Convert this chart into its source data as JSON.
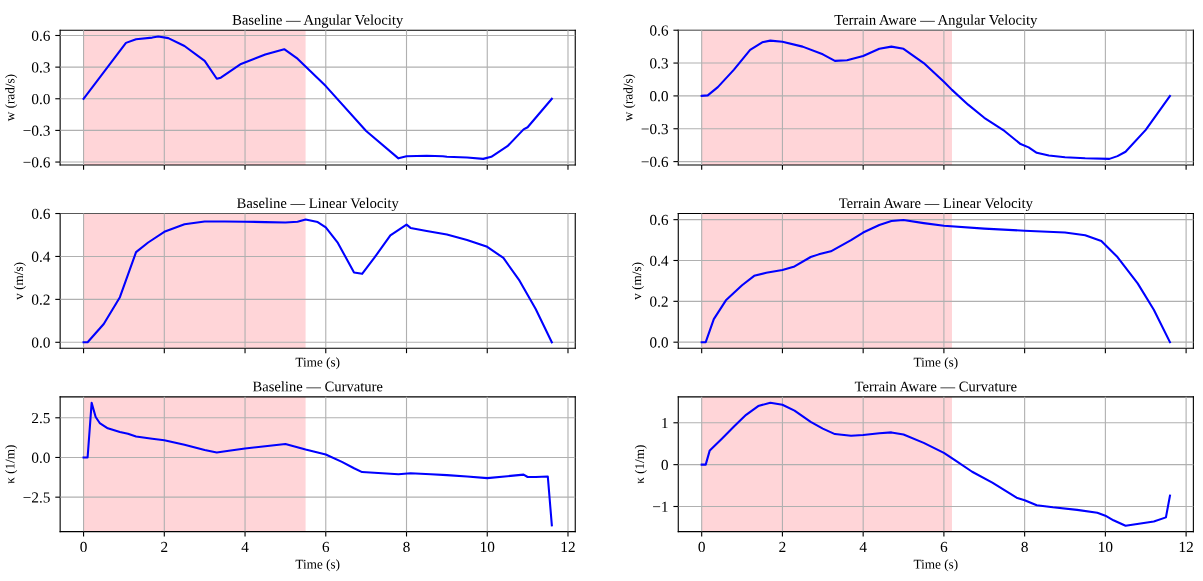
{
  "chart_data": [
    {
      "type": "line",
      "title": "Baseline — Angular Velocity",
      "ylabel": "w (rad/s)",
      "grid": true,
      "tick_labels": "y",
      "xlim": [
        -0.58,
        12.18
      ],
      "xticks": [
        0,
        2,
        4,
        6,
        8,
        10,
        12
      ],
      "ylim": [
        -0.628,
        0.65
      ],
      "yticks": [
        {
          "value": -0.6,
          "label": "−0.6"
        },
        {
          "value": -0.3,
          "label": "−0.3"
        },
        {
          "value": 0,
          "label": "0.0"
        },
        0.3,
        0.6
      ],
      "bands": [
        {
          "axis": "x",
          "from": 0,
          "to": 5.5,
          "color": "#ffd5d8"
        }
      ],
      "series": [
        {
          "color": "#0000ff",
          "x": [
            0,
            1.05,
            1.3,
            1.7,
            1.85,
            2.1,
            2.5,
            3.0,
            3.3,
            3.4,
            3.9,
            4.5,
            4.97,
            5.3,
            6.0,
            7.0,
            7.8,
            8.0,
            8.5,
            8.9,
            9.0,
            9.5,
            9.9,
            10.1,
            10.5,
            10.9,
            11.0,
            11.6
          ],
          "values": [
            0,
            0.53,
            0.565,
            0.58,
            0.59,
            0.575,
            0.5,
            0.36,
            0.19,
            0.2,
            0.33,
            0.42,
            0.47,
            0.38,
            0.12,
            -0.305,
            -0.565,
            -0.545,
            -0.54,
            -0.545,
            -0.55,
            -0.557,
            -0.57,
            -0.55,
            -0.45,
            -0.29,
            -0.27,
            0
          ]
        }
      ]
    },
    {
      "type": "line",
      "title": "Terrain Aware — Angular Velocity",
      "ylabel": "w (rad/s)",
      "grid": true,
      "tick_labels": "y",
      "xlim": [
        -0.58,
        12.18
      ],
      "xticks": [
        0,
        2,
        4,
        6,
        8,
        10,
        12
      ],
      "ylim": [
        -0.631,
        0.6
      ],
      "yticks": [
        {
          "value": -0.6,
          "label": "−0.6"
        },
        {
          "value": -0.3,
          "label": "−0.3"
        },
        {
          "value": 0,
          "label": "0.0"
        },
        0.3,
        0.6
      ],
      "bands": [
        {
          "axis": "x",
          "from": 0,
          "to": 6.2,
          "color": "#ffd5d8"
        }
      ],
      "series": [
        {
          "color": "#0000ff",
          "x": [
            0,
            0.15,
            0.4,
            0.8,
            1.2,
            1.5,
            1.7,
            2.0,
            2.5,
            3.0,
            3.3,
            3.6,
            4.0,
            4.4,
            4.7,
            5.0,
            5.5,
            6.0,
            6.2,
            6.6,
            7.0,
            7.5,
            7.9,
            8.1,
            8.3,
            8.6,
            9.0,
            9.5,
            10.1,
            10.3,
            10.5,
            11.0,
            11.6
          ],
          "values": [
            0,
            0.005,
            0.08,
            0.24,
            0.42,
            0.49,
            0.505,
            0.495,
            0.45,
            0.38,
            0.32,
            0.325,
            0.365,
            0.43,
            0.45,
            0.43,
            0.3,
            0.13,
            0.055,
            -0.08,
            -0.2,
            -0.32,
            -0.44,
            -0.47,
            -0.52,
            -0.545,
            -0.56,
            -0.57,
            -0.575,
            -0.55,
            -0.51,
            -0.31,
            0
          ]
        }
      ]
    },
    {
      "type": "line",
      "title": "Baseline — Linear Velocity",
      "xlabel": "Time (s)",
      "ylabel": "v (m/s)",
      "grid": true,
      "tick_labels": "y",
      "xlim": [
        -0.58,
        12.18
      ],
      "xticks": [
        0,
        2,
        4,
        6,
        8,
        10,
        12
      ],
      "ylim": [
        -0.028,
        0.6
      ],
      "yticks": [
        {
          "value": 0,
          "label": "0.0"
        },
        0.2,
        0.4,
        0.6
      ],
      "bands": [
        {
          "axis": "x",
          "from": 0,
          "to": 5.5,
          "color": "#ffd5d8"
        }
      ],
      "series": [
        {
          "color": "#0000ff",
          "x": [
            0,
            0.1,
            0.5,
            0.9,
            1.3,
            1.6,
            2.0,
            2.5,
            3.0,
            3.5,
            4.0,
            4.5,
            5.0,
            5.3,
            5.5,
            5.8,
            6.0,
            6.3,
            6.7,
            6.9,
            7.2,
            7.6,
            8.0,
            8.1,
            8.5,
            9.0,
            9.5,
            10.0,
            10.4,
            10.8,
            11.2,
            11.6
          ],
          "values": [
            0,
            0,
            0.085,
            0.21,
            0.42,
            0.465,
            0.515,
            0.55,
            0.563,
            0.563,
            0.562,
            0.56,
            0.558,
            0.562,
            0.572,
            0.56,
            0.535,
            0.463,
            0.325,
            0.319,
            0.393,
            0.498,
            0.548,
            0.533,
            0.519,
            0.502,
            0.477,
            0.445,
            0.393,
            0.287,
            0.155,
            0
          ]
        }
      ]
    },
    {
      "type": "line",
      "title": "Terrain Aware — Linear Velocity",
      "xlabel": "Time (s)",
      "ylabel": "v (m/s)",
      "grid": true,
      "tick_labels": "y",
      "xlim": [
        -0.58,
        12.18
      ],
      "xticks": [
        0,
        2,
        4,
        6,
        8,
        10,
        12
      ],
      "ylim": [
        -0.03,
        0.63
      ],
      "yticks": [
        {
          "value": 0,
          "label": "0.0"
        },
        0.2,
        0.4,
        0.6
      ],
      "bands": [
        {
          "axis": "x",
          "from": 0,
          "to": 6.2,
          "color": "#ffd5d8"
        }
      ],
      "series": [
        {
          "color": "#0000ff",
          "x": [
            0,
            0.1,
            0.3,
            0.6,
            1.0,
            1.3,
            1.6,
            2.0,
            2.3,
            2.7,
            2.9,
            3.2,
            3.7,
            4.0,
            4.4,
            4.7,
            5.0,
            5.5,
            6.0,
            7.0,
            8.0,
            9.0,
            9.5,
            9.9,
            10.3,
            10.8,
            11.2,
            11.6
          ],
          "values": [
            0,
            0,
            0.113,
            0.205,
            0.279,
            0.325,
            0.34,
            0.353,
            0.371,
            0.417,
            0.43,
            0.445,
            0.5,
            0.537,
            0.574,
            0.593,
            0.598,
            0.583,
            0.57,
            0.556,
            0.546,
            0.537,
            0.524,
            0.495,
            0.417,
            0.288,
            0.159,
            0
          ]
        }
      ]
    },
    {
      "type": "line",
      "title": "Baseline — Curvature",
      "xlabel": "Time (s)",
      "ylabel": "κ (1/m)",
      "grid": true,
      "xlim": [
        -0.58,
        12.18
      ],
      "xticks": [
        0,
        2,
        4,
        6,
        8,
        10,
        12
      ],
      "ylim": [
        -4.67,
        3.82
      ],
      "yticks": [
        {
          "value": -2.5,
          "label": "−2.5"
        },
        {
          "value": 0,
          "label": "0.0"
        },
        2.5
      ],
      "bands": [
        {
          "axis": "x",
          "from": 0,
          "to": 5.5,
          "color": "#ffd5d8"
        }
      ],
      "series": [
        {
          "color": "#0000ff",
          "x": [
            0,
            0.1,
            0.2,
            0.3,
            0.4,
            0.6,
            0.9,
            1.1,
            1.3,
            1.7,
            2.0,
            2.5,
            3.0,
            3.3,
            3.6,
            4.0,
            4.5,
            5.0,
            5.5,
            6.0,
            6.4,
            6.7,
            6.9,
            7.4,
            7.8,
            8.1,
            8.6,
            9.0,
            9.5,
            10.0,
            10.5,
            10.9,
            11.0,
            11.2,
            11.5,
            11.6
          ],
          "values": [
            0,
            0,
            3.44,
            2.55,
            2.17,
            1.84,
            1.6,
            1.49,
            1.32,
            1.18,
            1.08,
            0.8,
            0.47,
            0.31,
            0.42,
            0.57,
            0.71,
            0.85,
            0.5,
            0.19,
            -0.28,
            -0.68,
            -0.92,
            -0.99,
            -1.06,
            -0.99,
            -1.06,
            -1.11,
            -1.2,
            -1.3,
            -1.18,
            -1.08,
            -1.23,
            -1.23,
            -1.2,
            -4.27
          ]
        }
      ]
    },
    {
      "type": "line",
      "title": "Terrain Aware — Curvature",
      "xlabel": "Time (s)",
      "ylabel": "κ (1/m)",
      "grid": true,
      "xlim": [
        -0.58,
        12.18
      ],
      "xticks": [
        0,
        2,
        4,
        6,
        8,
        10,
        12
      ],
      "ylim": [
        -1.6,
        1.62
      ],
      "yticks": [
        {
          "value": -1,
          "label": "−1"
        },
        0,
        1
      ],
      "bands": [
        {
          "axis": "x",
          "from": 0,
          "to": 6.2,
          "color": "#ffd5d8"
        }
      ],
      "series": [
        {
          "color": "#0000ff",
          "x": [
            0,
            0.1,
            0.2,
            0.5,
            0.8,
            1.1,
            1.4,
            1.7,
            2.0,
            2.3,
            2.7,
            3.0,
            3.3,
            3.7,
            4.0,
            4.4,
            4.7,
            5.0,
            5.5,
            6.0,
            6.3,
            6.7,
            7.2,
            7.8,
            8.0,
            8.3,
            8.7,
            9.3,
            9.8,
            10.0,
            10.2,
            10.5,
            11.2,
            11.5,
            11.6
          ],
          "values": [
            0,
            0,
            0.34,
            0.62,
            0.91,
            1.19,
            1.4,
            1.48,
            1.43,
            1.29,
            1.02,
            0.86,
            0.73,
            0.69,
            0.71,
            0.75,
            0.77,
            0.72,
            0.52,
            0.28,
            0.09,
            -0.17,
            -0.43,
            -0.79,
            -0.85,
            -0.97,
            -1.02,
            -1.08,
            -1.15,
            -1.22,
            -1.33,
            -1.46,
            -1.36,
            -1.26,
            -0.74
          ]
        }
      ]
    }
  ]
}
